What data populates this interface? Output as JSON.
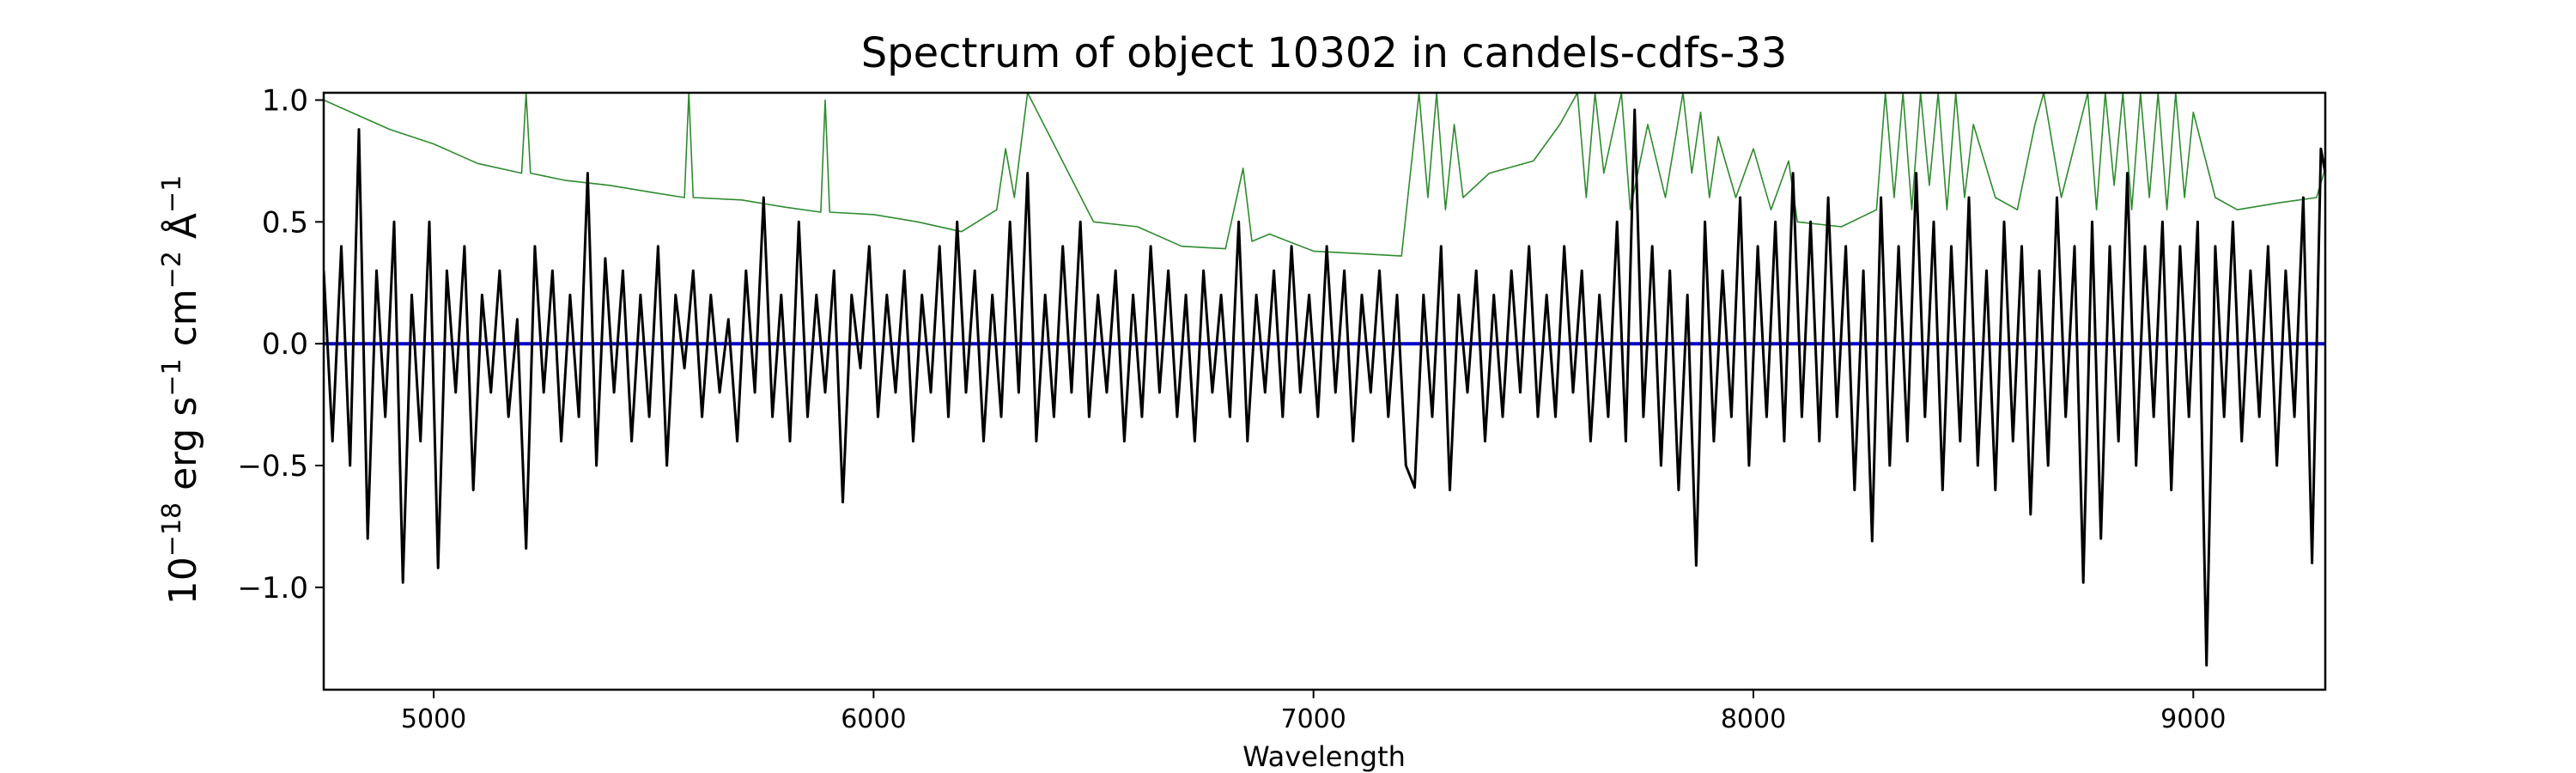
{
  "chart_data": {
    "type": "line",
    "title": "Spectrum of object 10302 in candels-cdfs-33",
    "xlabel": "Wavelength",
    "ylabel_parts": {
      "base": "10",
      "exp_a": "−18",
      "unit_a": " erg s",
      "exp_b": "−1",
      "unit_b": " cm",
      "exp_c": "−2",
      "unit_c": " Å",
      "exp_d": "−1"
    },
    "xlim": [
      4750,
      9300
    ],
    "ylim": [
      -1.42,
      1.03
    ],
    "xticks": [
      {
        "value": 5000,
        "label": "5000"
      },
      {
        "value": 6000,
        "label": "6000"
      },
      {
        "value": 7000,
        "label": "7000"
      },
      {
        "value": 8000,
        "label": "8000"
      },
      {
        "value": 9000,
        "label": "9000"
      }
    ],
    "yticks": [
      {
        "value": 1.0,
        "label": "1.0"
      },
      {
        "value": 0.5,
        "label": "0.5"
      },
      {
        "value": 0.0,
        "label": "0.0"
      },
      {
        "value": -0.5,
        "label": "−0.5"
      },
      {
        "value": -1.0,
        "label": "−1.0"
      }
    ],
    "grid": false,
    "series": [
      {
        "role": "error",
        "color": "#2e8b2e",
        "x": [
          4750,
          4800,
          4900,
          5000,
          5100,
          5200,
          5210,
          5220,
          5300,
          5400,
          5500,
          5570,
          5580,
          5590,
          5700,
          5800,
          5880,
          5890,
          5900,
          6000,
          6100,
          6200,
          6280,
          6300,
          6320,
          6350,
          6500,
          6600,
          6700,
          6800,
          6840,
          6860,
          6900,
          7000,
          7100,
          7200,
          7240,
          7260,
          7280,
          7300,
          7320,
          7340,
          7400,
          7500,
          7560,
          7600,
          7620,
          7640,
          7660,
          7700,
          7720,
          7760,
          7800,
          7840,
          7860,
          7880,
          7900,
          7920,
          7960,
          8000,
          8040,
          8080,
          8100,
          8200,
          8280,
          8300,
          8320,
          8340,
          8360,
          8380,
          8400,
          8420,
          8440,
          8460,
          8480,
          8500,
          8550,
          8600,
          8640,
          8660,
          8700,
          8760,
          8780,
          8800,
          8820,
          8840,
          8860,
          8880,
          8900,
          8920,
          8940,
          8960,
          8980,
          9000,
          9050,
          9100,
          9200,
          9280,
          9300
        ],
        "y": [
          1.0,
          0.96,
          0.88,
          0.82,
          0.74,
          0.7,
          1.03,
          0.7,
          0.67,
          0.65,
          0.62,
          0.6,
          1.03,
          0.6,
          0.59,
          0.56,
          0.54,
          1.0,
          0.54,
          0.53,
          0.5,
          0.46,
          0.55,
          0.8,
          0.6,
          1.03,
          0.5,
          0.48,
          0.4,
          0.39,
          0.72,
          0.42,
          0.45,
          0.38,
          0.37,
          0.36,
          1.03,
          0.6,
          1.03,
          0.55,
          0.9,
          0.6,
          0.7,
          0.75,
          0.9,
          1.03,
          0.6,
          1.03,
          0.7,
          1.03,
          0.55,
          0.9,
          0.6,
          1.03,
          0.7,
          0.95,
          0.6,
          0.85,
          0.6,
          0.8,
          0.55,
          0.75,
          0.5,
          0.48,
          0.55,
          1.03,
          0.6,
          1.03,
          0.55,
          1.03,
          0.65,
          1.03,
          0.55,
          1.03,
          0.6,
          0.9,
          0.6,
          0.55,
          0.9,
          1.03,
          0.6,
          1.03,
          0.55,
          1.03,
          0.65,
          1.03,
          0.55,
          1.03,
          0.6,
          1.03,
          0.55,
          1.03,
          0.6,
          0.95,
          0.6,
          0.55,
          0.58,
          0.6,
          0.72
        ]
      },
      {
        "role": "model",
        "color": "#0000cc",
        "x": [
          4750,
          9300
        ],
        "y": [
          0.0,
          0.0
        ]
      },
      {
        "role": "flux",
        "color": "#000000",
        "x": [
          4750,
          4770,
          4790,
          4810,
          4830,
          4850,
          4870,
          4890,
          4910,
          4930,
          4950,
          4970,
          4990,
          5010,
          5030,
          5050,
          5070,
          5090,
          5110,
          5130,
          5150,
          5170,
          5190,
          5210,
          5230,
          5250,
          5270,
          5290,
          5310,
          5330,
          5350,
          5370,
          5390,
          5410,
          5430,
          5450,
          5470,
          5490,
          5510,
          5530,
          5550,
          5570,
          5590,
          5610,
          5630,
          5650,
          5670,
          5690,
          5710,
          5730,
          5750,
          5770,
          5790,
          5810,
          5830,
          5850,
          5870,
          5890,
          5910,
          5930,
          5950,
          5970,
          5990,
          6010,
          6030,
          6050,
          6070,
          6090,
          6110,
          6130,
          6150,
          6170,
          6190,
          6210,
          6230,
          6250,
          6270,
          6290,
          6310,
          6330,
          6350,
          6370,
          6390,
          6410,
          6430,
          6450,
          6470,
          6490,
          6510,
          6530,
          6550,
          6570,
          6590,
          6610,
          6630,
          6650,
          6670,
          6690,
          6710,
          6730,
          6750,
          6770,
          6790,
          6810,
          6830,
          6850,
          6870,
          6890,
          6910,
          6930,
          6950,
          6970,
          6990,
          7010,
          7030,
          7050,
          7070,
          7090,
          7110,
          7130,
          7150,
          7170,
          7190,
          7210,
          7230,
          7250,
          7270,
          7290,
          7310,
          7330,
          7350,
          7370,
          7390,
          7410,
          7430,
          7450,
          7470,
          7490,
          7510,
          7530,
          7550,
          7570,
          7590,
          7610,
          7630,
          7650,
          7670,
          7690,
          7710,
          7730,
          7750,
          7770,
          7790,
          7810,
          7830,
          7850,
          7870,
          7890,
          7910,
          7930,
          7950,
          7970,
          7990,
          8010,
          8030,
          8050,
          8070,
          8090,
          8110,
          8130,
          8150,
          8170,
          8190,
          8210,
          8230,
          8250,
          8270,
          8290,
          8310,
          8330,
          8350,
          8370,
          8390,
          8410,
          8430,
          8450,
          8470,
          8490,
          8510,
          8530,
          8550,
          8570,
          8590,
          8610,
          8630,
          8650,
          8670,
          8690,
          8710,
          8730,
          8750,
          8770,
          8790,
          8810,
          8830,
          8850,
          8870,
          8890,
          8910,
          8930,
          8950,
          8970,
          8990,
          9010,
          9030,
          9050,
          9070,
          9090,
          9110,
          9130,
          9150,
          9170,
          9190,
          9210,
          9230,
          9250,
          9270,
          9290,
          9300
        ],
        "y": [
          0.3,
          -0.4,
          0.4,
          -0.5,
          0.88,
          -0.8,
          0.3,
          -0.3,
          0.5,
          -0.98,
          0.2,
          -0.4,
          0.5,
          -0.92,
          0.3,
          -0.2,
          0.4,
          -0.6,
          0.2,
          -0.2,
          0.3,
          -0.3,
          0.1,
          -0.84,
          0.4,
          -0.2,
          0.3,
          -0.4,
          0.2,
          -0.3,
          0.7,
          -0.5,
          0.35,
          -0.2,
          0.3,
          -0.4,
          0.2,
          -0.3,
          0.4,
          -0.5,
          0.2,
          -0.1,
          0.3,
          -0.3,
          0.2,
          -0.2,
          0.1,
          -0.4,
          0.3,
          -0.2,
          0.6,
          -0.3,
          0.2,
          -0.4,
          0.5,
          -0.3,
          0.2,
          -0.2,
          0.3,
          -0.65,
          0.2,
          -0.1,
          0.4,
          -0.3,
          0.2,
          -0.2,
          0.3,
          -0.4,
          0.2,
          -0.2,
          0.4,
          -0.3,
          0.5,
          -0.2,
          0.3,
          -0.4,
          0.2,
          -0.3,
          0.5,
          -0.2,
          0.7,
          -0.4,
          0.2,
          -0.3,
          0.4,
          -0.2,
          0.5,
          -0.3,
          0.2,
          -0.2,
          0.3,
          -0.4,
          0.2,
          -0.3,
          0.4,
          -0.2,
          0.3,
          -0.3,
          0.2,
          -0.4,
          0.3,
          -0.2,
          0.2,
          -0.3,
          0.5,
          -0.4,
          0.2,
          -0.2,
          0.3,
          -0.3,
          0.4,
          -0.2,
          0.2,
          -0.3,
          0.4,
          -0.2,
          0.3,
          -0.4,
          0.2,
          -0.2,
          0.3,
          -0.3,
          0.2,
          -0.5,
          -0.59,
          0.2,
          -0.3,
          0.4,
          -0.6,
          0.2,
          -0.2,
          0.3,
          -0.4,
          0.2,
          -0.3,
          0.3,
          -0.2,
          0.4,
          -0.3,
          0.2,
          -0.3,
          0.4,
          -0.2,
          0.3,
          -0.4,
          0.2,
          -0.3,
          0.5,
          -0.4,
          0.96,
          -0.3,
          0.4,
          -0.5,
          0.3,
          -0.6,
          0.2,
          -0.91,
          0.5,
          -0.4,
          0.3,
          -0.3,
          0.6,
          -0.5,
          0.4,
          -0.3,
          0.5,
          -0.4,
          0.7,
          -0.3,
          0.5,
          -0.4,
          0.6,
          -0.3,
          0.4,
          -0.6,
          0.3,
          -0.81,
          0.6,
          -0.5,
          0.4,
          -0.4,
          0.7,
          -0.3,
          0.5,
          -0.6,
          0.4,
          -0.4,
          0.6,
          -0.5,
          0.3,
          -0.6,
          0.5,
          -0.4,
          0.4,
          -0.7,
          0.3,
          -0.5,
          0.6,
          -0.3,
          0.4,
          -0.98,
          0.5,
          -0.8,
          0.4,
          -0.4,
          0.7,
          -0.5,
          0.4,
          -0.3,
          0.5,
          -0.6,
          0.4,
          -0.3,
          0.5,
          -1.32,
          0.4,
          -0.3,
          0.5,
          -0.4,
          0.3,
          -0.3,
          0.4,
          -0.5,
          0.3,
          -0.3,
          0.6,
          -0.9,
          0.8,
          0.7
        ]
      }
    ]
  }
}
